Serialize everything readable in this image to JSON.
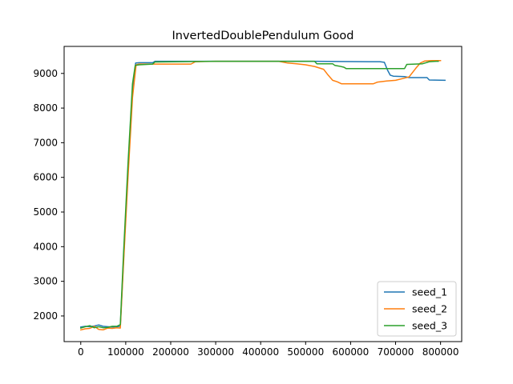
{
  "chart_data": {
    "type": "line",
    "title": "InvertedDoublePendulum Good",
    "xlabel": "",
    "ylabel": "",
    "xlim": [
      -37000,
      847000
    ],
    "ylim": [
      1260,
      9780
    ],
    "xticks": [
      0,
      100000,
      200000,
      300000,
      400000,
      500000,
      600000,
      700000,
      800000
    ],
    "xtick_labels": [
      "0",
      "100000",
      "200000",
      "300000",
      "400000",
      "500000",
      "600000",
      "700000",
      "800000"
    ],
    "yticks": [
      2000,
      3000,
      4000,
      5000,
      6000,
      7000,
      8000,
      9000
    ],
    "ytick_labels": [
      "2000",
      "3000",
      "4000",
      "5000",
      "6000",
      "7000",
      "8000",
      "9000"
    ],
    "grid": false,
    "legend_position": "lower-right",
    "series": [
      {
        "name": "seed_1",
        "color": "#1f77b4",
        "points": [
          [
            0,
            1680
          ],
          [
            10000,
            1700
          ],
          [
            20000,
            1690
          ],
          [
            30000,
            1710
          ],
          [
            40000,
            1740
          ],
          [
            50000,
            1700
          ],
          [
            60000,
            1690
          ],
          [
            70000,
            1680
          ],
          [
            80000,
            1690
          ],
          [
            88000,
            1700
          ],
          [
            95000,
            3600
          ],
          [
            105000,
            6200
          ],
          [
            115000,
            8500
          ],
          [
            122000,
            9300
          ],
          [
            130000,
            9310
          ],
          [
            160000,
            9310
          ],
          [
            165000,
            9350
          ],
          [
            300000,
            9350
          ],
          [
            450000,
            9350
          ],
          [
            520000,
            9350
          ],
          [
            640000,
            9340
          ],
          [
            665000,
            9340
          ],
          [
            675000,
            9320
          ],
          [
            682000,
            9100
          ],
          [
            688000,
            8950
          ],
          [
            695000,
            8920
          ],
          [
            720000,
            8910
          ],
          [
            730000,
            8880
          ],
          [
            770000,
            8880
          ],
          [
            775000,
            8810
          ],
          [
            810000,
            8800
          ]
        ]
      },
      {
        "name": "seed_2",
        "color": "#ff7f0e",
        "points": [
          [
            0,
            1600
          ],
          [
            10000,
            1630
          ],
          [
            20000,
            1640
          ],
          [
            30000,
            1700
          ],
          [
            40000,
            1610
          ],
          [
            50000,
            1600
          ],
          [
            60000,
            1650
          ],
          [
            70000,
            1640
          ],
          [
            80000,
            1660
          ],
          [
            88000,
            1650
          ],
          [
            95000,
            3500
          ],
          [
            105000,
            6000
          ],
          [
            115000,
            8300
          ],
          [
            123000,
            9250
          ],
          [
            130000,
            9270
          ],
          [
            200000,
            9270
          ],
          [
            245000,
            9270
          ],
          [
            255000,
            9340
          ],
          [
            300000,
            9350
          ],
          [
            440000,
            9350
          ],
          [
            460000,
            9300
          ],
          [
            480000,
            9280
          ],
          [
            500000,
            9250
          ],
          [
            520000,
            9200
          ],
          [
            540000,
            9120
          ],
          [
            550000,
            8950
          ],
          [
            560000,
            8800
          ],
          [
            570000,
            8760
          ],
          [
            580000,
            8700
          ],
          [
            650000,
            8700
          ],
          [
            660000,
            8750
          ],
          [
            680000,
            8780
          ],
          [
            700000,
            8800
          ],
          [
            715000,
            8850
          ],
          [
            730000,
            8900
          ],
          [
            745000,
            9150
          ],
          [
            755000,
            9300
          ],
          [
            765000,
            9360
          ],
          [
            780000,
            9370
          ],
          [
            800000,
            9370
          ]
        ]
      },
      {
        "name": "seed_3",
        "color": "#2ca02c",
        "points": [
          [
            0,
            1650
          ],
          [
            10000,
            1690
          ],
          [
            20000,
            1720
          ],
          [
            30000,
            1660
          ],
          [
            40000,
            1690
          ],
          [
            50000,
            1660
          ],
          [
            60000,
            1670
          ],
          [
            70000,
            1700
          ],
          [
            80000,
            1700
          ],
          [
            88000,
            1750
          ],
          [
            95000,
            3800
          ],
          [
            105000,
            6400
          ],
          [
            115000,
            8700
          ],
          [
            121000,
            9230
          ],
          [
            130000,
            9250
          ],
          [
            160000,
            9270
          ],
          [
            165000,
            9330
          ],
          [
            300000,
            9350
          ],
          [
            450000,
            9350
          ],
          [
            520000,
            9350
          ],
          [
            525000,
            9280
          ],
          [
            560000,
            9280
          ],
          [
            565000,
            9230
          ],
          [
            575000,
            9210
          ],
          [
            585000,
            9180
          ],
          [
            590000,
            9140
          ],
          [
            640000,
            9140
          ],
          [
            700000,
            9140
          ],
          [
            720000,
            9140
          ],
          [
            725000,
            9260
          ],
          [
            760000,
            9280
          ],
          [
            775000,
            9340
          ],
          [
            790000,
            9350
          ],
          [
            795000,
            9350
          ]
        ]
      }
    ]
  }
}
